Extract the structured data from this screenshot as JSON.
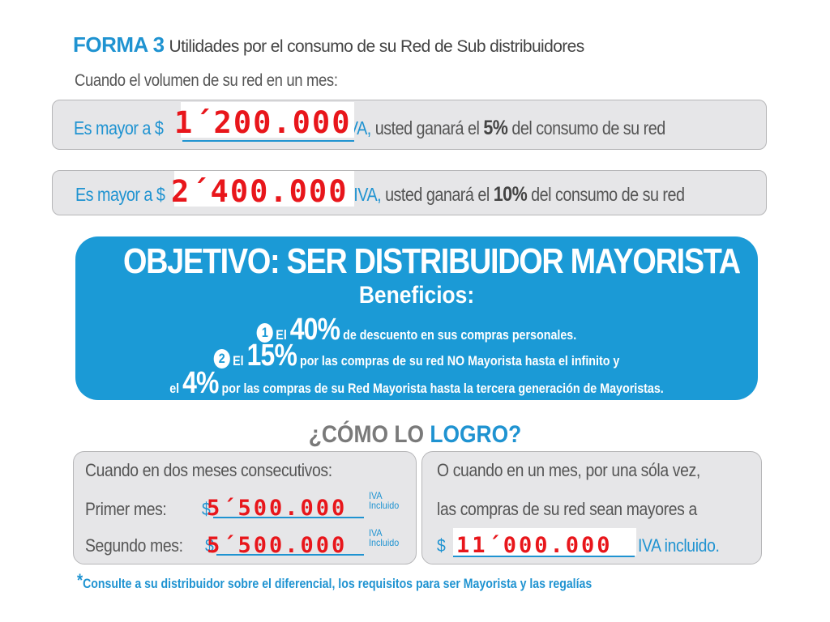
{
  "header": {
    "forma": "FORMA 3",
    "subtitle": "Utilidades por el consumo de su Red de Sub distribuidores",
    "intro": "Cuando el volumen de su red en un mes:"
  },
  "tiers": [
    {
      "prefix": "Es mayor a $",
      "amount": "1´200.000",
      "suffix_iva": "+IVA,",
      "middle": " usted ganará el ",
      "percent": "5%",
      "end": " del consumo de su red"
    },
    {
      "prefix": "Es mayor a $",
      "amount": "2´400.000",
      "suffix_iva": "+IVA,",
      "middle": " usted ganará el ",
      "percent": "10%",
      "end": " del consumo de su red"
    }
  ],
  "objetivo": {
    "title": "OBJETIVO: SER DISTRIBUIDOR MAYORISTA",
    "beneficios": "Beneficios:",
    "b1_num": "1",
    "b1_el": "El",
    "b1_pct": "40%",
    "b1_text": "de descuento en sus compras personales.",
    "b2_num": "2",
    "b2_el": "El",
    "b2_pct": "15%",
    "b2_text": "por las compras de su red NO Mayorista hasta el infinito y",
    "b3_el": "el",
    "b3_pct": "4%",
    "b3_text": "por las compras de su Red Mayorista hasta la tercera generación de Mayoristas."
  },
  "como": {
    "part1": "¿CÓMO LO ",
    "part2": "LOGRO?"
  },
  "left_box": {
    "line1": "Cuando en dos meses consecutivos:",
    "primer_label": "Primer mes:",
    "segundo_label": "Segundo mes:",
    "dollar": "$",
    "primer_amount": "5´500.000",
    "segundo_amount": "5´500.000",
    "iva_line1": "IVA",
    "iva_line2": "Incluido"
  },
  "right_box": {
    "line1": "O cuando en un mes, por una sóla vez,",
    "line2": "las compras de su red sean mayores a",
    "dollar": "$",
    "amount": "11´000.000",
    "iva": "IVA incluido."
  },
  "footer": {
    "star": "*",
    "text": "Consulte a su distribuidor sobre el diferencial, los requisitos para ser Mayorista y las regalías"
  },
  "colors": {
    "brand_blue": "#1f93d1",
    "panel_blue": "#1b9ad6",
    "amount_red": "#e8161b",
    "box_gray": "#e6e6e8"
  }
}
